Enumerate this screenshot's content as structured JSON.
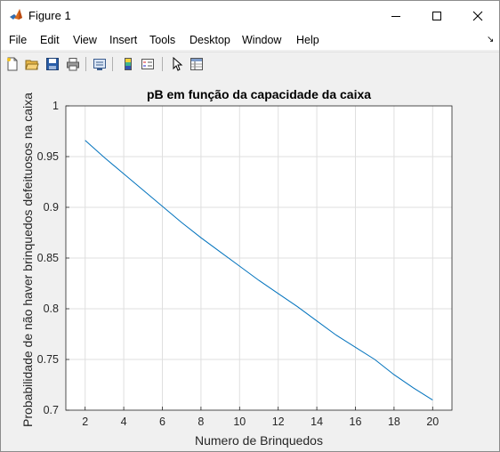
{
  "window": {
    "title": "Figure 1",
    "icon": "matlab-icon",
    "controls": [
      "minimize-icon",
      "maximize-icon",
      "close-icon"
    ]
  },
  "menubar": {
    "items": [
      "File",
      "Edit",
      "View",
      "Insert",
      "Tools",
      "Desktop",
      "Window",
      "Help"
    ],
    "dock_icon": "dock-arrow-icon"
  },
  "toolbar": {
    "icons": [
      "new-figure-icon",
      "open-file-icon",
      "save-icon",
      "print-icon",
      "link-plot-icon",
      "insert-colorbar-icon",
      "insert-legend-icon",
      "edit-plot-icon",
      "property-inspector-icon"
    ]
  },
  "chart_data": {
    "type": "line",
    "title": "pB em função da capacidade da caixa",
    "xlabel": "Numero de Brinquedos",
    "ylabel": "Probabilidade de não haver brinquedos defeituosos na caixa",
    "xlim": [
      1,
      21
    ],
    "ylim": [
      0.7,
      1
    ],
    "xticks": [
      "2",
      "4",
      "6",
      "8",
      "10",
      "12",
      "14",
      "16",
      "18",
      "20"
    ],
    "yticks": [
      "0.7",
      "0.75",
      "0.8",
      "0.85",
      "0.9",
      "0.95",
      "1"
    ],
    "grid": true,
    "line_color": "#0072bd",
    "series": [
      {
        "x": [
          2,
          3,
          4,
          5,
          6,
          7,
          8,
          9,
          10,
          11,
          12,
          13,
          14,
          15,
          16,
          17,
          18,
          19,
          20
        ],
        "y": [
          0.966,
          0.949,
          0.933,
          0.917,
          0.901,
          0.885,
          0.87,
          0.856,
          0.842,
          0.828,
          0.815,
          0.802,
          0.788,
          0.774,
          0.762,
          0.75,
          0.735,
          0.722,
          0.71
        ]
      }
    ]
  }
}
